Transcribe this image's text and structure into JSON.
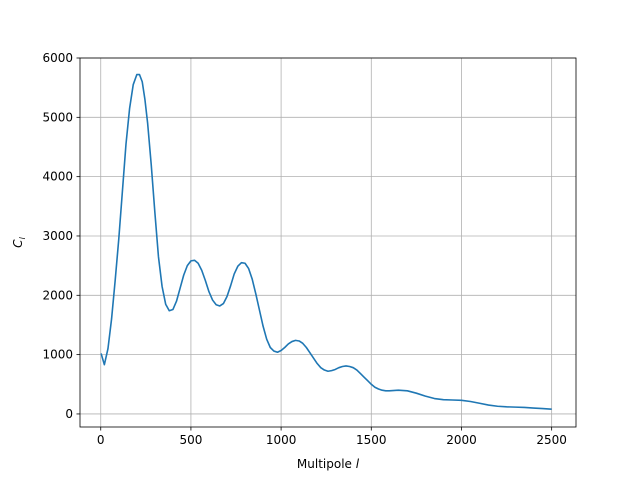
{
  "chart_data": {
    "type": "line",
    "title": "",
    "xlabel_text": "Multipole ",
    "xlabel_italic": "l",
    "ylabel_main": "C",
    "ylabel_sub": "l",
    "xlim": [
      -115,
      2635
    ],
    "ylim": [
      -220,
      6000
    ],
    "xticks": [
      0,
      500,
      1000,
      1500,
      2000,
      2500
    ],
    "yticks": [
      0,
      1000,
      2000,
      3000,
      4000,
      5000,
      6000
    ],
    "grid": true,
    "line_color": "#1f77b4",
    "series": [
      {
        "x": [
          2,
          20,
          40,
          60,
          80,
          100,
          120,
          140,
          160,
          180,
          200,
          215,
          230,
          245,
          260,
          280,
          300,
          320,
          340,
          360,
          380,
          400,
          420,
          440,
          460,
          480,
          500,
          520,
          540,
          560,
          580,
          600,
          620,
          640,
          660,
          680,
          700,
          720,
          740,
          760,
          780,
          800,
          820,
          840,
          860,
          880,
          900,
          920,
          940,
          960,
          980,
          1000,
          1020,
          1040,
          1060,
          1080,
          1100,
          1120,
          1140,
          1160,
          1180,
          1200,
          1220,
          1240,
          1260,
          1280,
          1300,
          1320,
          1340,
          1360,
          1380,
          1400,
          1420,
          1440,
          1460,
          1480,
          1500,
          1520,
          1540,
          1560,
          1580,
          1600,
          1620,
          1650,
          1700,
          1750,
          1800,
          1850,
          1900,
          1950,
          2000,
          2050,
          2100,
          2150,
          2200,
          2250,
          2300,
          2350,
          2400,
          2450,
          2500
        ],
        "y": [
          1020,
          830,
          1100,
          1600,
          2250,
          2950,
          3750,
          4550,
          5150,
          5550,
          5720,
          5720,
          5600,
          5300,
          4900,
          4200,
          3400,
          2650,
          2150,
          1850,
          1740,
          1760,
          1900,
          2120,
          2340,
          2500,
          2580,
          2590,
          2540,
          2420,
          2250,
          2060,
          1920,
          1840,
          1820,
          1860,
          1980,
          2160,
          2360,
          2490,
          2550,
          2540,
          2450,
          2270,
          2020,
          1750,
          1480,
          1260,
          1120,
          1060,
          1040,
          1070,
          1120,
          1180,
          1220,
          1240,
          1230,
          1190,
          1120,
          1030,
          940,
          850,
          780,
          740,
          720,
          730,
          750,
          780,
          800,
          810,
          800,
          780,
          740,
          680,
          620,
          560,
          500,
          450,
          420,
          400,
          390,
          390,
          395,
          400,
          390,
          350,
          300,
          260,
          240,
          235,
          230,
          210,
          180,
          150,
          130,
          120,
          115,
          110,
          100,
          90,
          80
        ]
      }
    ]
  }
}
